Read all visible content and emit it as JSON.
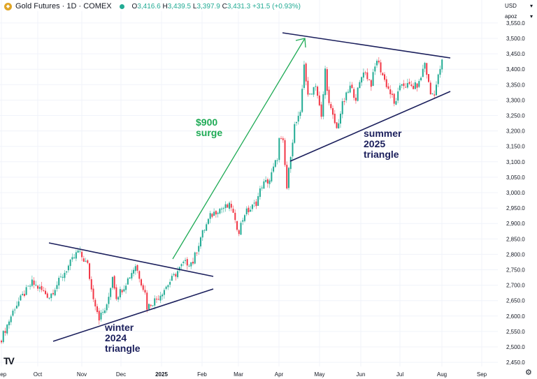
{
  "header": {
    "title": "Gold Futures · 1D · COMEX",
    "open_label": "O",
    "open": "3,416.6",
    "high_label": "H",
    "high": "3,439.5",
    "low_label": "L",
    "low": "3,397.9",
    "close_label": "C",
    "close": "3,431.3",
    "change": "+31.5 (+0.93%)",
    "icon": "gold-coin-icon",
    "status_icon": "market-open-dot-icon"
  },
  "currency": "USD",
  "unit": "apoz",
  "logo": "TV",
  "settings_icon": "gear-icon",
  "colors": {
    "up": "#22ab94",
    "down": "#f23645",
    "trendline": "#1b1f5c",
    "arrow": "#1eaa55",
    "grid": "#f0f3fa"
  },
  "annotations": {
    "surge": [
      "$900",
      "surge"
    ],
    "winter": [
      "winter",
      "2024",
      "triangle"
    ],
    "summer": [
      "summer",
      "2025",
      "triangle"
    ]
  },
  "chart_data": {
    "type": "candlestick",
    "title": "Gold Futures · 1D · COMEX",
    "ylim": [
      2430,
      3560
    ],
    "y_ticks": [
      "2,450.0",
      "2,500.0",
      "2,550.0",
      "2,600.0",
      "2,650.0",
      "2,700.0",
      "2,750.0",
      "2,800.0",
      "2,850.0",
      "2,900.0",
      "2,950.0",
      "3,000.0",
      "3,050.0",
      "3,100.0",
      "3,150.0",
      "3,200.0",
      "3,250.0",
      "3,300.0",
      "3,350.0",
      "3,400.0",
      "3,450.0",
      "3,500.0",
      "3,550.0"
    ],
    "x_ticks": [
      "Sep",
      "Oct",
      "Nov",
      "Dec",
      "2025",
      "Feb",
      "Mar",
      "Apr",
      "May",
      "Jun",
      "Jul",
      "Aug",
      "Sep"
    ],
    "close_anchors_by_trading_day": [
      [
        0,
        2527
      ],
      [
        7,
        2629
      ],
      [
        16,
        2708
      ],
      [
        25,
        2663
      ],
      [
        33,
        2742
      ],
      [
        40,
        2810
      ],
      [
        45,
        2765
      ],
      [
        47,
        2686
      ],
      [
        51,
        2595
      ],
      [
        55,
        2629
      ],
      [
        58,
        2731
      ],
      [
        60,
        2663
      ],
      [
        64,
        2697
      ],
      [
        70,
        2765
      ],
      [
        75,
        2674
      ],
      [
        76,
        2629
      ],
      [
        82,
        2663
      ],
      [
        89,
        2720
      ],
      [
        95,
        2770
      ],
      [
        100,
        2776
      ],
      [
        104,
        2855
      ],
      [
        109,
        2923
      ],
      [
        113,
        2946
      ],
      [
        120,
        2957
      ],
      [
        122,
        2900
      ],
      [
        124,
        2878
      ],
      [
        127,
        2934
      ],
      [
        130,
        2946
      ],
      [
        133,
        2968
      ],
      [
        136,
        3025
      ],
      [
        140,
        3041
      ],
      [
        144,
        3115
      ],
      [
        145,
        3172
      ],
      [
        147,
        3160
      ],
      [
        149,
        3014
      ],
      [
        151,
        3127
      ],
      [
        153,
        3217
      ],
      [
        156,
        3251
      ],
      [
        158,
        3421
      ],
      [
        160,
        3308
      ],
      [
        164,
        3353
      ],
      [
        167,
        3240
      ],
      [
        169,
        3398
      ],
      [
        171,
        3285
      ],
      [
        175,
        3206
      ],
      [
        178,
        3285
      ],
      [
        182,
        3342
      ],
      [
        185,
        3308
      ],
      [
        189,
        3398
      ],
      [
        193,
        3353
      ],
      [
        196,
        3432
      ],
      [
        200,
        3364
      ],
      [
        204,
        3308
      ],
      [
        205,
        3285
      ],
      [
        209,
        3353
      ],
      [
        215,
        3342
      ],
      [
        218,
        3353
      ],
      [
        221,
        3421
      ],
      [
        224,
        3319
      ],
      [
        226,
        3325
      ],
      [
        228,
        3375
      ],
      [
        230,
        3431.3
      ]
    ]
  }
}
